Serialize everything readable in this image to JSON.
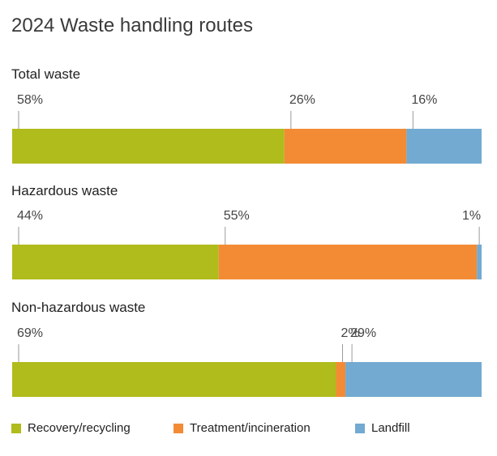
{
  "chart_data": {
    "type": "bar",
    "stacked": true,
    "orientation": "horizontal",
    "title": "2024 Waste handling routes",
    "unit": "%",
    "series": [
      {
        "name": "Recovery/recycling",
        "color": "#b0bb1c"
      },
      {
        "name": "Treatment/incineration",
        "color": "#f38b35"
      },
      {
        "name": "Landfill",
        "color": "#72aad1"
      }
    ],
    "categories": [
      "Total waste",
      "Hazardous waste",
      "Non-hazardous waste"
    ],
    "rows": [
      {
        "label": "Total waste",
        "values": [
          58,
          26,
          16
        ],
        "labels": [
          "58%",
          "26%",
          "16%"
        ]
      },
      {
        "label": "Hazardous waste",
        "values": [
          44,
          55,
          1
        ],
        "labels": [
          "44%",
          "55%",
          "1%"
        ]
      },
      {
        "label": "Non-hazardous waste",
        "values": [
          69,
          2,
          29
        ],
        "labels": [
          "69%",
          "2%",
          "29%"
        ]
      }
    ],
    "legend_position": "bottom"
  }
}
